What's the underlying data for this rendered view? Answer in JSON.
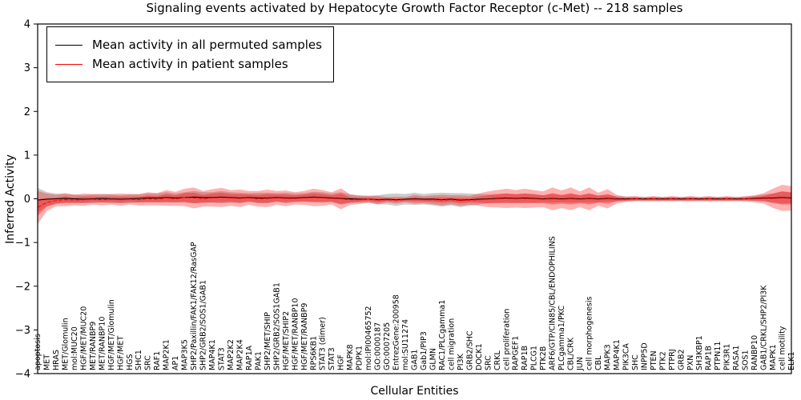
{
  "title": "Signaling events activated by Hepatocyte Growth Factor Receptor (c-Met) -- 218 samples",
  "axes": {
    "ylabel": "Inferred Activity",
    "xlabel": "Cellular Entities",
    "ytick_labels": [
      "−4",
      "−3",
      "−2",
      "−1",
      "0",
      "1",
      "2",
      "3",
      "4"
    ],
    "ytick_values": [
      -4,
      -3,
      -2,
      -1,
      0,
      1,
      2,
      3,
      4
    ]
  },
  "colors": {
    "permuted_line": "#000000",
    "patient_line": "#ff0000",
    "patient_band": "#ff0000",
    "permuted_band": "#999999",
    "frame": "#000000"
  },
  "chart_data": {
    "type": "line",
    "title": "Signaling events activated by Hepatocyte Growth Factor Receptor (c-Met) -- 218 samples",
    "xlabel": "Cellular Entities",
    "ylabel": "Inferred Activity",
    "ylim": [
      -4,
      4
    ],
    "grid": false,
    "legend_position": "upper left",
    "categories": [
      "apoptosis",
      "MET",
      "HRAS",
      "MET/Glomulin",
      "mol:MUC20",
      "HGF/MET/MUC20",
      "MET/RANBP9",
      "MET/RANBP10",
      "HGF/MET/Glomulin",
      "HGF/MET",
      "HGS",
      "SHC1",
      "SRC",
      "RAF1",
      "MAP2K1",
      "AP1",
      "MAP3K5",
      "SHP2/Paxillin/FAK1/FAK12/RasGAP",
      "SHP2/GRB2/SOS1/GAB1",
      "MAP4K1",
      "STAT3",
      "MAP2K2",
      "MAP2K4",
      "RAP1A",
      "PAK1",
      "SHP2/MET/SHIP",
      "SHP2/GRB2/SOS1GAB1",
      "HGF/MET/SHIP2",
      "HGF/MET/RANBP10",
      "HGF/MET/RANBP9",
      "RPS6KB1",
      "STAT3 (dimer)",
      "STAT3",
      "HGF",
      "MAPK8",
      "PDPK1",
      "mol:IPI00465752",
      "GO:0000187",
      "GO:0007205",
      "EntrezGene:200958",
      "mol:SU11274",
      "GAB1",
      "Gab1/PIP3",
      "GLMN",
      "RAC1/PLCgamma1",
      "cell migration",
      "PI3K",
      "GRB2/SHC",
      "DOCK1",
      "SRC",
      "CRKL",
      "cell proliferation",
      "RAPGEF1",
      "RAP1B",
      "PLCG1",
      "PTK2B",
      "ARF6/GTP/CIN85/CBL/ENDOPHILINS",
      "PLCgamma1/PKC",
      "CBL/CRK",
      "JUN",
      "cell morphogenesis",
      "CBL",
      "MAPK3",
      "MAP4K1",
      "PIK3CA",
      "SHC",
      "INPP5D",
      "PTEN",
      "PTK2",
      "PTPRJ",
      "GRB2",
      "PXN",
      "SH3KBP1",
      "RAP1B",
      "PTPN11",
      "PIK3R1",
      "RASA1",
      "SOS1",
      "RANBP10",
      "GAB1/CRKL/SHP2/PI3K",
      "MAPK1",
      "cell motility",
      "ELK1"
    ],
    "series": [
      {
        "name": "Mean activity in all permuted samples",
        "color": "#000000",
        "values": [
          -0.03,
          -0.01,
          0.0,
          0.01,
          0.0,
          -0.01,
          0.0,
          0.01,
          0.0,
          -0.01,
          0.0,
          0.01,
          0.02,
          0.02,
          0.03,
          0.02,
          0.03,
          0.04,
          0.03,
          0.03,
          0.04,
          0.03,
          0.02,
          0.03,
          0.02,
          0.02,
          0.03,
          0.02,
          0.02,
          0.03,
          0.04,
          0.03,
          0.02,
          0.01,
          0.0,
          -0.01,
          -0.01,
          -0.02,
          -0.01,
          -0.02,
          -0.01,
          0.0,
          -0.01,
          -0.01,
          -0.02,
          -0.01,
          -0.03,
          -0.02,
          -0.01,
          0.0,
          0.01,
          0.02,
          0.01,
          0.02,
          0.01,
          0.0,
          0.01,
          0.0,
          0.01,
          0.0,
          0.01,
          0.0,
          0.01,
          0.0,
          0.0,
          0.0,
          0.0,
          0.0,
          0.0,
          0.0,
          0.0,
          0.0,
          0.0,
          0.0,
          0.0,
          0.0,
          0.0,
          0.0,
          0.01,
          0.02,
          0.02,
          0.03,
          0.02
        ],
        "band_halfwidth": [
          0.28,
          0.16,
          0.12,
          0.1,
          0.1,
          0.09,
          0.1,
          0.09,
          0.1,
          0.09,
          0.1,
          0.09,
          0.1,
          0.1,
          0.12,
          0.1,
          0.12,
          0.14,
          0.12,
          0.12,
          0.14,
          0.12,
          0.12,
          0.1,
          0.12,
          0.12,
          0.1,
          0.12,
          0.1,
          0.1,
          0.12,
          0.12,
          0.1,
          0.14,
          0.1,
          0.08,
          0.08,
          0.1,
          0.12,
          0.14,
          0.12,
          0.14,
          0.12,
          0.14,
          0.16,
          0.14,
          0.16,
          0.14,
          0.12,
          0.1,
          0.1,
          0.1,
          0.1,
          0.1,
          0.1,
          0.08,
          0.1,
          0.08,
          0.1,
          0.08,
          0.1,
          0.08,
          0.08,
          0.06,
          0.05,
          0.05,
          0.04,
          0.05,
          0.04,
          0.05,
          0.04,
          0.05,
          0.04,
          0.05,
          0.04,
          0.05,
          0.04,
          0.05,
          0.06,
          0.08,
          0.1,
          0.14,
          0.12
        ]
      },
      {
        "name": "Mean activity in patient samples",
        "color": "#ff0000",
        "values": [
          -0.2,
          -0.08,
          -0.04,
          -0.02,
          -0.03,
          -0.02,
          -0.01,
          -0.02,
          -0.01,
          -0.02,
          -0.01,
          -0.02,
          0.0,
          -0.01,
          0.02,
          0.0,
          0.03,
          0.02,
          0.0,
          0.02,
          0.03,
          0.02,
          0.01,
          0.02,
          0.0,
          0.01,
          0.02,
          0.01,
          0.01,
          0.02,
          0.03,
          0.02,
          0.01,
          0.0,
          -0.02,
          -0.02,
          -0.01,
          -0.03,
          -0.02,
          -0.03,
          -0.02,
          -0.01,
          -0.02,
          -0.02,
          -0.03,
          -0.02,
          -0.04,
          -0.03,
          -0.02,
          -0.01,
          0.0,
          0.01,
          0.0,
          0.01,
          0.0,
          -0.01,
          0.0,
          -0.01,
          0.0,
          -0.01,
          0.0,
          -0.01,
          0.0,
          -0.01,
          -0.01,
          0.0,
          -0.01,
          0.0,
          -0.01,
          0.0,
          -0.01,
          0.0,
          -0.01,
          0.0,
          -0.01,
          0.0,
          -0.01,
          0.0,
          0.0,
          0.01,
          0.01,
          0.02,
          0.01
        ],
        "band_halfwidth": [
          0.38,
          0.2,
          0.13,
          0.15,
          0.12,
          0.14,
          0.12,
          0.13,
          0.12,
          0.14,
          0.12,
          0.13,
          0.15,
          0.14,
          0.18,
          0.16,
          0.2,
          0.24,
          0.18,
          0.2,
          0.22,
          0.18,
          0.2,
          0.16,
          0.18,
          0.2,
          0.16,
          0.18,
          0.14,
          0.16,
          0.2,
          0.18,
          0.14,
          0.24,
          0.12,
          0.1,
          0.08,
          0.1,
          0.06,
          0.08,
          0.06,
          0.1,
          0.08,
          0.1,
          0.12,
          0.1,
          0.12,
          0.1,
          0.14,
          0.18,
          0.2,
          0.22,
          0.2,
          0.22,
          0.2,
          0.18,
          0.26,
          0.2,
          0.26,
          0.18,
          0.26,
          0.15,
          0.22,
          0.1,
          0.06,
          0.06,
          0.05,
          0.06,
          0.05,
          0.06,
          0.05,
          0.06,
          0.05,
          0.06,
          0.05,
          0.06,
          0.05,
          0.06,
          0.08,
          0.12,
          0.22,
          0.3,
          0.28
        ]
      }
    ]
  }
}
